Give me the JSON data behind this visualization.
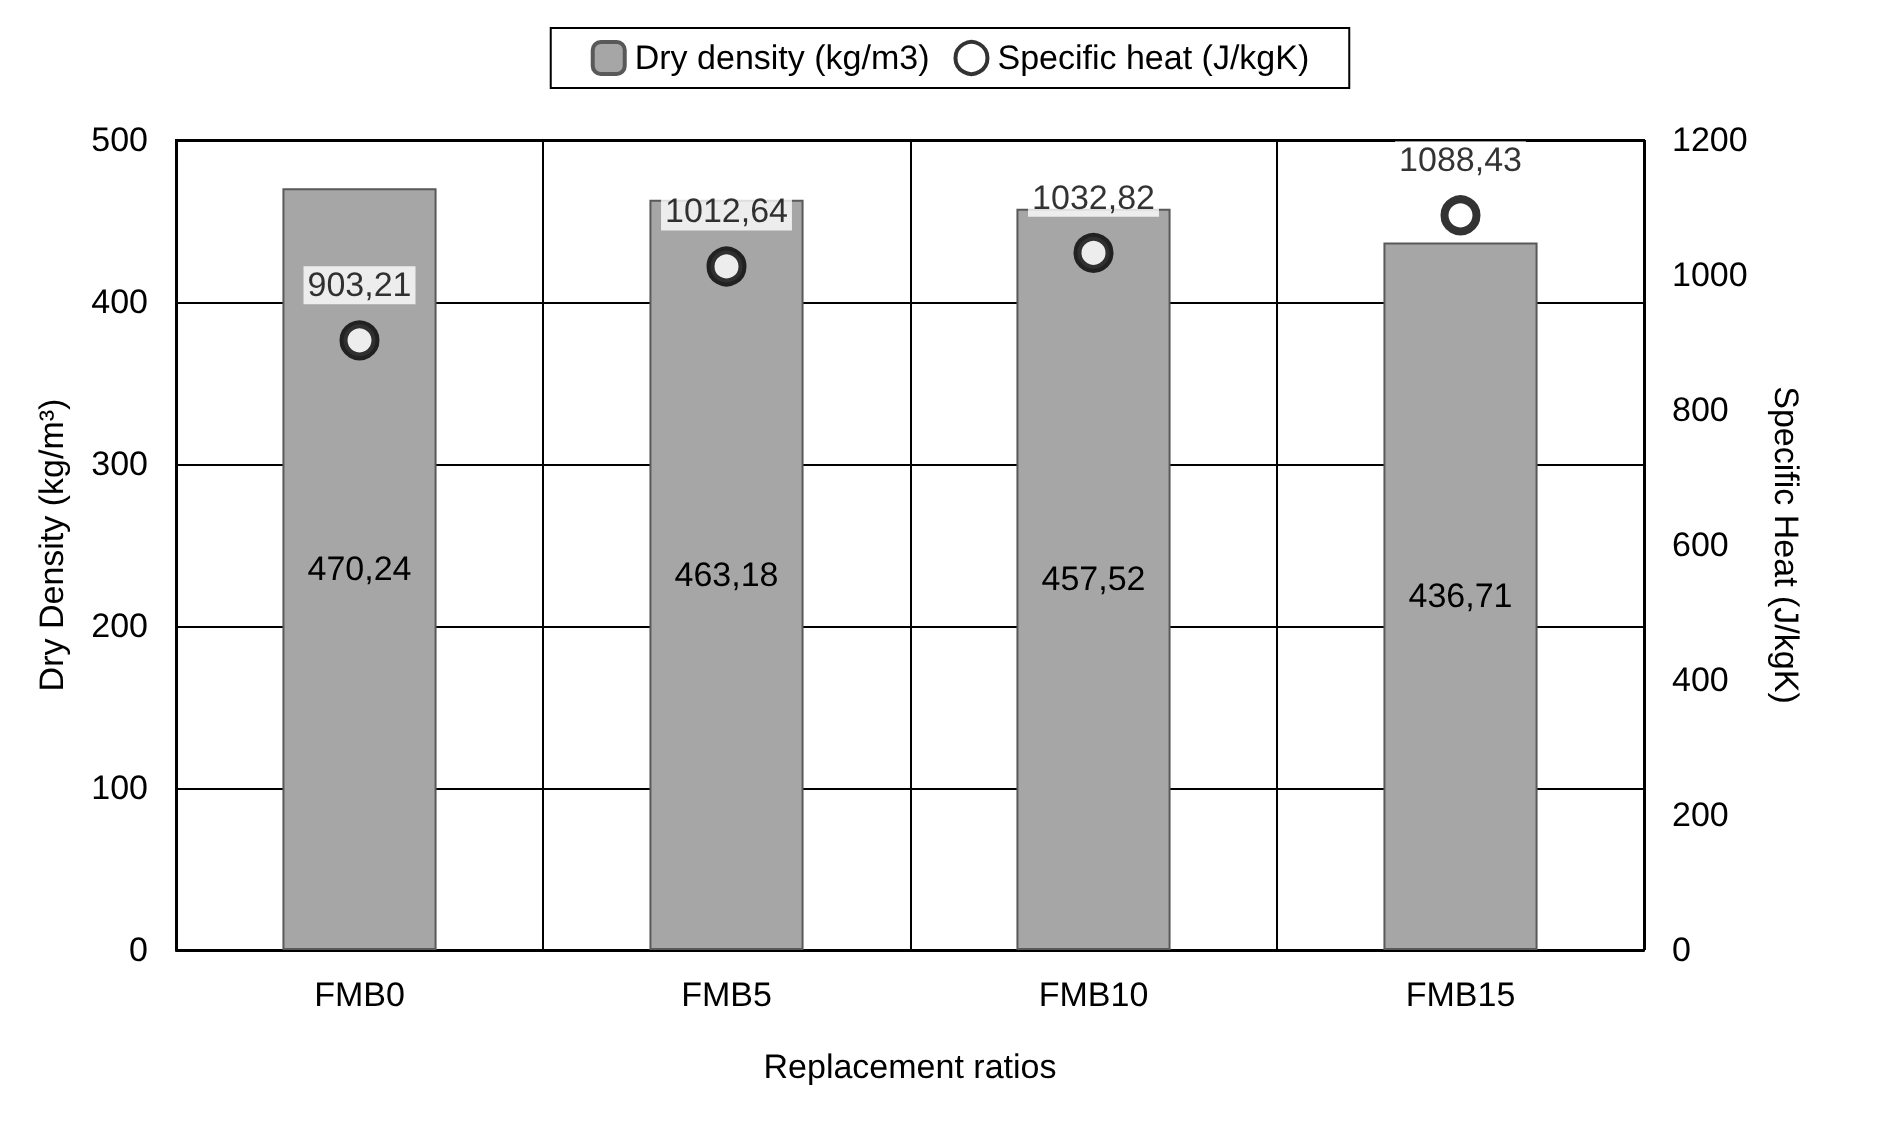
{
  "chart_data": {
    "type": "bar",
    "xlabel": "Replacement ratios",
    "ylabel": "Dry Density (kg/m³)",
    "y2label": "Specific Heat (J/kgK)",
    "categories": [
      "FMB0",
      "FMB5",
      "FMB10",
      "FMB15"
    ],
    "series": [
      {
        "name": "Dry density (kg/m3)",
        "color": "#a6a6a6",
        "values": [
          470.24,
          463.18,
          457.52,
          436.71
        ],
        "value_labels": [
          "470,24",
          "463,18",
          "457,52",
          "436,71"
        ]
      },
      {
        "name": "Specific heat (J/kgK)",
        "type": "scatter",
        "axis": "y2",
        "color": "#000000",
        "marker": "circle",
        "values": [
          903.21,
          1012.64,
          1032.82,
          1088.43
        ],
        "value_labels": [
          "903,21",
          "1012,64",
          "1032,82",
          "1088,43"
        ]
      }
    ],
    "ylim": [
      0,
      500
    ],
    "yticks": [
      0,
      100,
      200,
      300,
      400,
      500
    ],
    "y2lim": [
      0,
      1200
    ],
    "y2ticks": [
      0,
      200,
      400,
      600,
      800,
      1000,
      1200
    ],
    "grid": true,
    "legend": "top"
  }
}
